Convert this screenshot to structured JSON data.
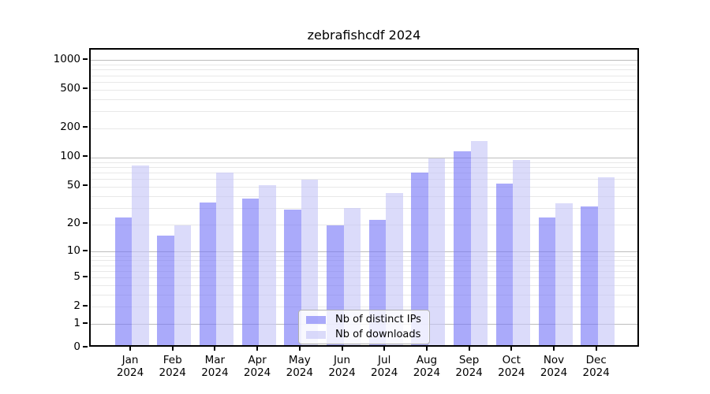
{
  "chart_data": {
    "type": "bar",
    "title": "zebrafishcdf 2024",
    "categories": [
      "Jan",
      "Feb",
      "Mar",
      "Apr",
      "May",
      "Jun",
      "Jul",
      "Aug",
      "Sep",
      "Oct",
      "Nov",
      "Dec"
    ],
    "year_label": "2024",
    "series": [
      {
        "name": "Nb of distinct IPs",
        "color": "rgba(113,113,247,0.6)",
        "solid_color": "#aaaafa",
        "values": [
          22,
          14,
          32,
          35,
          27,
          18,
          21,
          66,
          108,
          50,
          22,
          29
        ]
      },
      {
        "name": "Nb of downloads",
        "color": "rgba(195,195,247,0.6)",
        "solid_color": "#dbdbfa",
        "values": [
          78,
          18,
          65,
          48,
          55,
          28,
          40,
          92,
          139,
          89,
          31,
          58
        ]
      }
    ],
    "y_scale": "log10(value+1)",
    "ylim": [
      0,
      1290
    ],
    "y_tick_labels": [
      "1000",
      "500",
      "200",
      "100",
      "50",
      "20",
      "10",
      "5",
      "2",
      "1",
      "0"
    ],
    "y_tick_values": [
      1000,
      500,
      200,
      100,
      50,
      20,
      10,
      5,
      2,
      1,
      0
    ],
    "y_major_grid": [
      1,
      10,
      100,
      1000
    ],
    "y_minor_grid": [
      2,
      3,
      4,
      5,
      6,
      7,
      8,
      9,
      20,
      30,
      40,
      50,
      60,
      70,
      80,
      90,
      200,
      300,
      400,
      500,
      600,
      700,
      800,
      900
    ],
    "grid": "on",
    "legend_position": "lower center"
  }
}
